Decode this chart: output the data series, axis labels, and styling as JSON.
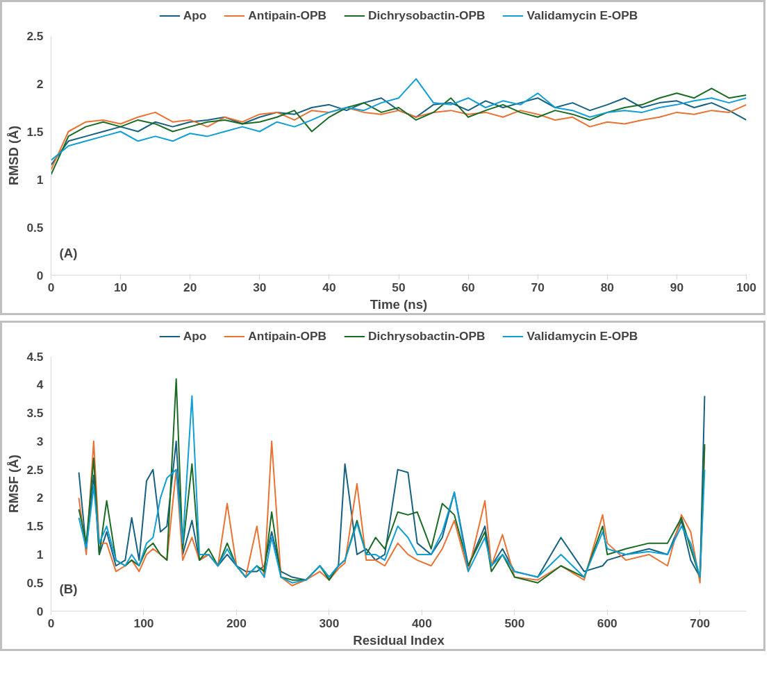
{
  "chart_data": [
    {
      "type": "line",
      "xlabel": "Time (ns)",
      "ylabel": "RMSD (Å)",
      "annotations": [
        "(A)"
      ],
      "legend": "top",
      "grid": false,
      "x": [
        0,
        2.5,
        5,
        7.5,
        10,
        12.5,
        15,
        17.5,
        20,
        22.5,
        25,
        27.5,
        30,
        32.5,
        35,
        37.5,
        40,
        42.5,
        45,
        47.5,
        50,
        52.5,
        55,
        57.5,
        60,
        62.5,
        65,
        67.5,
        70,
        72.5,
        75,
        77.5,
        80,
        82.5,
        85,
        87.5,
        90,
        92.5,
        95,
        97.5,
        100
      ],
      "xlim": [
        0,
        100
      ],
      "xticks": [
        0,
        10,
        20,
        30,
        40,
        50,
        60,
        70,
        80,
        90,
        100
      ],
      "ylim": [
        0,
        2.5
      ],
      "yticks": [
        0,
        0.5,
        1,
        1.5,
        2,
        2.5
      ],
      "series": [
        {
          "name": "Apo",
          "color": "#156082",
          "values": [
            1.15,
            1.4,
            1.45,
            1.5,
            1.55,
            1.5,
            1.6,
            1.55,
            1.6,
            1.62,
            1.65,
            1.58,
            1.65,
            1.7,
            1.68,
            1.75,
            1.78,
            1.72,
            1.8,
            1.85,
            1.72,
            1.65,
            1.78,
            1.8,
            1.72,
            1.82,
            1.75,
            1.8,
            1.85,
            1.75,
            1.8,
            1.72,
            1.78,
            1.85,
            1.75,
            1.8,
            1.82,
            1.75,
            1.8,
            1.72,
            1.62
          ]
        },
        {
          "name": "Antipain-OPB",
          "color": "#e97132",
          "values": [
            1.1,
            1.5,
            1.6,
            1.62,
            1.58,
            1.65,
            1.7,
            1.6,
            1.62,
            1.55,
            1.65,
            1.6,
            1.68,
            1.7,
            1.62,
            1.72,
            1.7,
            1.75,
            1.7,
            1.68,
            1.72,
            1.65,
            1.7,
            1.72,
            1.68,
            1.7,
            1.65,
            1.72,
            1.68,
            1.62,
            1.65,
            1.55,
            1.6,
            1.58,
            1.62,
            1.65,
            1.7,
            1.68,
            1.72,
            1.7,
            1.78
          ]
        },
        {
          "name": "Dichrysobactin-OPB",
          "color": "#196b24",
          "values": [
            1.05,
            1.45,
            1.55,
            1.6,
            1.55,
            1.62,
            1.58,
            1.5,
            1.55,
            1.6,
            1.62,
            1.58,
            1.6,
            1.65,
            1.72,
            1.5,
            1.65,
            1.75,
            1.8,
            1.7,
            1.75,
            1.62,
            1.7,
            1.85,
            1.65,
            1.72,
            1.78,
            1.7,
            1.65,
            1.72,
            1.68,
            1.62,
            1.7,
            1.75,
            1.78,
            1.85,
            1.9,
            1.85,
            1.95,
            1.85,
            1.88
          ]
        },
        {
          "name": "Validamycin E-OPB",
          "color": "#0f9ed5",
          "values": [
            1.2,
            1.35,
            1.4,
            1.45,
            1.5,
            1.4,
            1.45,
            1.4,
            1.48,
            1.45,
            1.5,
            1.55,
            1.5,
            1.6,
            1.55,
            1.62,
            1.7,
            1.75,
            1.72,
            1.8,
            1.85,
            2.05,
            1.8,
            1.78,
            1.85,
            1.75,
            1.82,
            1.78,
            1.9,
            1.75,
            1.72,
            1.65,
            1.7,
            1.72,
            1.7,
            1.75,
            1.78,
            1.82,
            1.85,
            1.8,
            1.85
          ]
        }
      ]
    },
    {
      "type": "line",
      "xlabel": "Residual Index",
      "ylabel": "RMSF (Å)",
      "annotations": [
        "(B)"
      ],
      "legend": "top",
      "grid": false,
      "x": [
        30,
        38,
        46,
        52,
        60,
        70,
        80,
        87,
        95,
        103,
        110,
        118,
        125,
        135,
        142,
        152,
        160,
        170,
        180,
        190,
        200,
        210,
        222,
        230,
        238,
        248,
        260,
        275,
        290,
        300,
        310,
        317,
        330,
        340,
        350,
        360,
        374,
        385,
        395,
        410,
        422,
        435,
        450,
        468,
        475,
        487,
        500,
        525,
        550,
        575,
        595,
        600,
        620,
        645,
        665,
        680,
        690,
        700,
        705
      ],
      "xlim": [
        0,
        750
      ],
      "xticks": [
        0,
        100,
        200,
        300,
        400,
        500,
        600,
        700
      ],
      "ylim": [
        0,
        4.5
      ],
      "yticks": [
        0,
        0.5,
        1,
        1.5,
        2,
        2.5,
        3,
        3.5,
        4,
        4.5
      ],
      "series": [
        {
          "name": "Apo",
          "color": "#156082",
          "values": [
            2.45,
            1.1,
            2.4,
            1.0,
            1.4,
            0.8,
            0.9,
            1.65,
            0.9,
            2.3,
            2.5,
            1.4,
            1.5,
            3.0,
            1.0,
            1.6,
            0.9,
            1.0,
            0.8,
            1.0,
            0.8,
            0.7,
            0.7,
            0.8,
            1.4,
            0.7,
            0.6,
            0.55,
            0.8,
            0.6,
            0.8,
            2.6,
            1.0,
            1.1,
            0.9,
            1.0,
            2.5,
            2.45,
            1.2,
            1.0,
            1.3,
            2.1,
            0.8,
            1.5,
            0.8,
            1.1,
            0.7,
            0.6,
            1.3,
            0.7,
            0.8,
            0.9,
            1.0,
            1.1,
            1.0,
            1.6,
            0.9,
            0.6,
            3.8
          ]
        },
        {
          "name": "Antipain-OPB",
          "color": "#e97132",
          "values": [
            2.0,
            1.0,
            3.0,
            1.2,
            1.2,
            0.7,
            0.8,
            0.9,
            0.7,
            1.0,
            1.1,
            1.0,
            0.9,
            2.5,
            0.9,
            1.3,
            0.9,
            1.0,
            0.8,
            1.9,
            0.8,
            0.6,
            1.5,
            0.6,
            3.0,
            0.6,
            0.45,
            0.55,
            0.7,
            0.55,
            0.75,
            0.85,
            2.25,
            0.9,
            0.9,
            0.8,
            1.2,
            1.0,
            0.9,
            0.8,
            1.1,
            1.6,
            0.7,
            1.95,
            0.8,
            1.35,
            0.6,
            0.55,
            0.8,
            0.55,
            1.7,
            1.2,
            0.9,
            1.0,
            0.8,
            1.7,
            1.4,
            0.5,
            2.9
          ]
        },
        {
          "name": "Dichrysobactin-OPB",
          "color": "#196b24",
          "values": [
            1.8,
            1.2,
            2.7,
            1.0,
            1.95,
            0.9,
            0.8,
            0.9,
            0.8,
            1.1,
            1.2,
            1.0,
            0.9,
            4.1,
            1.1,
            2.6,
            0.9,
            1.1,
            0.8,
            1.2,
            0.8,
            0.6,
            0.8,
            0.7,
            1.75,
            0.6,
            0.55,
            0.55,
            0.8,
            0.55,
            0.8,
            0.9,
            1.6,
            1.0,
            1.3,
            1.1,
            1.75,
            1.7,
            1.75,
            1.1,
            1.9,
            1.7,
            0.8,
            1.4,
            0.7,
            1.0,
            0.6,
            0.5,
            0.8,
            0.6,
            1.5,
            1.0,
            1.1,
            1.2,
            1.2,
            1.65,
            1.1,
            0.6,
            2.95
          ]
        },
        {
          "name": "Validamycin E-OPB",
          "color": "#0f9ed5",
          "values": [
            1.65,
            1.1,
            2.2,
            1.2,
            1.5,
            0.9,
            0.8,
            1.0,
            0.8,
            1.2,
            1.3,
            2.0,
            2.35,
            2.5,
            1.2,
            3.8,
            1.0,
            1.0,
            0.8,
            1.1,
            0.8,
            0.6,
            0.8,
            0.6,
            1.3,
            0.6,
            0.5,
            0.55,
            0.8,
            0.6,
            0.8,
            0.9,
            1.55,
            1.0,
            1.0,
            0.9,
            1.5,
            1.3,
            1.0,
            1.0,
            1.4,
            2.1,
            0.7,
            1.3,
            0.8,
            1.0,
            0.7,
            0.6,
            1.0,
            0.6,
            1.4,
            1.1,
            1.0,
            1.05,
            1.0,
            1.5,
            1.2,
            0.6,
            2.5
          ]
        }
      ]
    }
  ]
}
